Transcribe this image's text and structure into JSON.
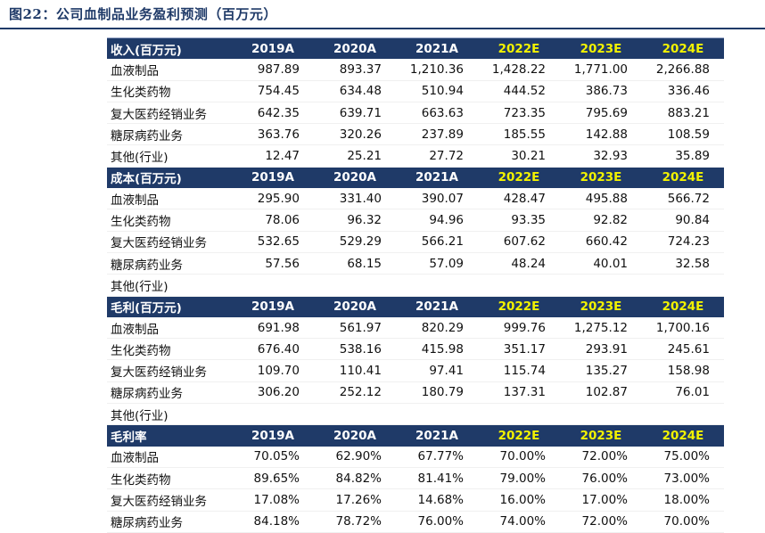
{
  "title": "图22：公司血制品业务盈利预测（百万元）",
  "years": [
    "2019A",
    "2020A",
    "2021A",
    "2022E",
    "2023E",
    "2024E"
  ],
  "colors": {
    "header_bg": "#1f3a68",
    "header_text": "#ffffff",
    "estimate_year": "#f2f200"
  },
  "sections": [
    {
      "header": "收入(百万元)",
      "rows": [
        {
          "label": "血液制品",
          "values": [
            "987.89",
            "893.37",
            "1,210.36",
            "1,428.22",
            "1,771.00",
            "2,266.88"
          ]
        },
        {
          "label": "生化类药物",
          "values": [
            "754.45",
            "634.48",
            "510.94",
            "444.52",
            "386.73",
            "336.46"
          ]
        },
        {
          "label": "复大医药经销业务",
          "values": [
            "642.35",
            "639.71",
            "663.63",
            "723.35",
            "795.69",
            "883.21"
          ]
        },
        {
          "label": "糖尿病药业务",
          "values": [
            "363.76",
            "320.26",
            "237.89",
            "185.55",
            "142.88",
            "108.59"
          ]
        },
        {
          "label": "其他(行业)",
          "values": [
            "12.47",
            "25.21",
            "27.72",
            "30.21",
            "32.93",
            "35.89"
          ]
        }
      ]
    },
    {
      "header": "成本(百万元)",
      "rows": [
        {
          "label": "血液制品",
          "values": [
            "295.90",
            "331.40",
            "390.07",
            "428.47",
            "495.88",
            "566.72"
          ]
        },
        {
          "label": "生化类药物",
          "values": [
            "78.06",
            "96.32",
            "94.96",
            "93.35",
            "92.82",
            "90.84"
          ]
        },
        {
          "label": "复大医药经销业务",
          "values": [
            "532.65",
            "529.29",
            "566.21",
            "607.62",
            "660.42",
            "724.23"
          ]
        },
        {
          "label": "糖尿病药业务",
          "values": [
            "57.56",
            "68.15",
            "57.09",
            "48.24",
            "40.01",
            "32.58"
          ]
        },
        {
          "label": "其他(行业)",
          "values": [
            "",
            "",
            "",
            "",
            "",
            ""
          ]
        }
      ]
    },
    {
      "header": "毛利(百万元)",
      "rows": [
        {
          "label": "血液制品",
          "values": [
            "691.98",
            "561.97",
            "820.29",
            "999.76",
            "1,275.12",
            "1,700.16"
          ]
        },
        {
          "label": "生化类药物",
          "values": [
            "676.40",
            "538.16",
            "415.98",
            "351.17",
            "293.91",
            "245.61"
          ]
        },
        {
          "label": "复大医药经销业务",
          "values": [
            "109.70",
            "110.41",
            "97.41",
            "115.74",
            "135.27",
            "158.98"
          ]
        },
        {
          "label": "糖尿病药业务",
          "values": [
            "306.20",
            "252.12",
            "180.79",
            "137.31",
            "102.87",
            "76.01"
          ]
        },
        {
          "label": "其他(行业)",
          "values": [
            "",
            "",
            "",
            "",
            "",
            ""
          ]
        }
      ]
    },
    {
      "header": "毛利率",
      "rows": [
        {
          "label": "血液制品",
          "values": [
            "70.05%",
            "62.90%",
            "67.77%",
            "70.00%",
            "72.00%",
            "75.00%"
          ]
        },
        {
          "label": "生化类药物",
          "values": [
            "89.65%",
            "84.82%",
            "81.41%",
            "79.00%",
            "76.00%",
            "73.00%"
          ]
        },
        {
          "label": "复大医药经销业务",
          "values": [
            "17.08%",
            "17.26%",
            "14.68%",
            "16.00%",
            "17.00%",
            "18.00%"
          ]
        },
        {
          "label": "糖尿病药业务",
          "values": [
            "84.18%",
            "78.72%",
            "76.00%",
            "74.00%",
            "72.00%",
            "70.00%"
          ]
        }
      ]
    }
  ]
}
